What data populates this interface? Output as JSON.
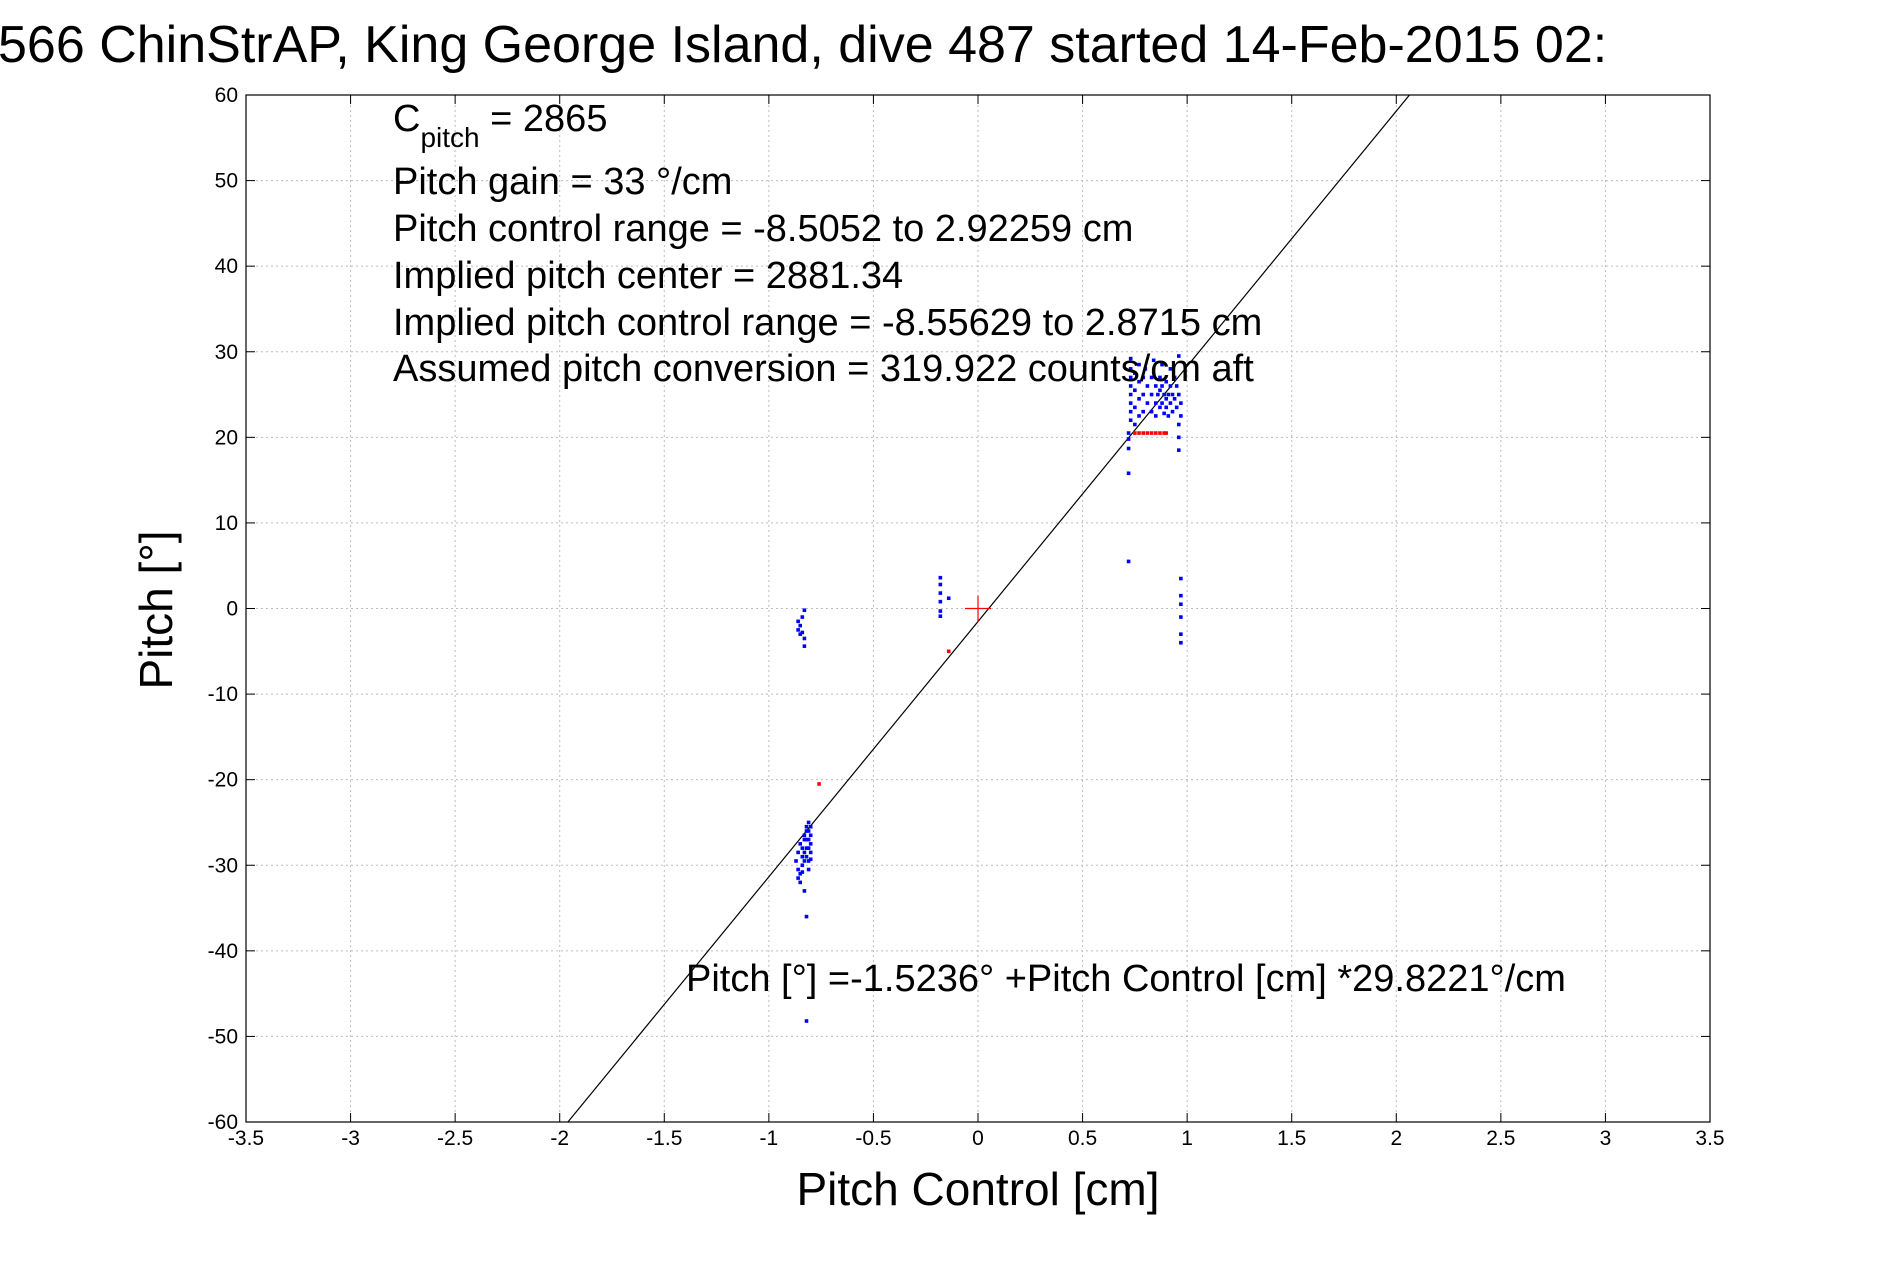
{
  "chart_data": {
    "type": "scatter",
    "title": "566 ChinStrAP, King George Island, dive 487 started 14-Feb-2015 02:",
    "xlabel": "Pitch Control [cm]",
    "ylabel": "Pitch [°]",
    "xlim": [
      -3.5,
      3.5
    ],
    "ylim": [
      -60,
      60
    ],
    "grid": true,
    "x_ticks": [
      -3.5,
      -3,
      -2.5,
      -2,
      -1.5,
      -1,
      -0.5,
      0,
      0.5,
      1,
      1.5,
      2,
      2.5,
      3,
      3.5
    ],
    "y_ticks": [
      -60,
      -50,
      -40,
      -30,
      -20,
      -10,
      0,
      10,
      20,
      30,
      40,
      50,
      60
    ],
    "x_tick_labels": [
      "-3.5",
      "-3",
      "-2.5",
      "-2",
      "-1.5",
      "-1",
      "-0.5",
      "0",
      "0.5",
      "1",
      "1.5",
      "2",
      "2.5",
      "3",
      "3.5"
    ],
    "y_tick_labels": [
      "-60",
      "-50",
      "-40",
      "-30",
      "-20",
      "-10",
      "0",
      "10",
      "20",
      "30",
      "40",
      "50",
      "60"
    ],
    "annotations": {
      "c_pitch_main": "C",
      "c_pitch_sub": "pitch",
      "c_pitch_value": " = 2865",
      "pitch_gain": "Pitch gain = 33 °/cm",
      "control_range": "Pitch control range = -8.5052 to 2.92259 cm",
      "implied_center": "Implied pitch center = 2881.34",
      "implied_range": "Implied pitch control range = -8.55629 to 2.8715 cm",
      "conversion": "Assumed pitch conversion = 319.922 counts/cm aft",
      "fit_equation": "Pitch [°] =-1.5236° +Pitch Control [cm] *29.8221°/cm"
    },
    "fit_line": {
      "intercept": -1.5236,
      "slope": 29.8221,
      "color": "#000000"
    },
    "center_marker": {
      "x": 0,
      "y": 0,
      "color": "#ff0000"
    },
    "series": [
      {
        "color": "#0000ff",
        "points": [
          [
            -0.86,
            -1.5
          ],
          [
            -0.85,
            -2.0
          ],
          [
            -0.86,
            -2.5
          ],
          [
            -0.84,
            -1.0
          ],
          [
            -0.83,
            -0.2
          ],
          [
            -0.83,
            -3.5
          ],
          [
            -0.83,
            -4.4
          ],
          [
            -0.85,
            -3.0
          ],
          [
            -0.84,
            -2.8
          ],
          [
            -0.87,
            -29.5
          ],
          [
            -0.86,
            -30.5
          ],
          [
            -0.86,
            -28.5
          ],
          [
            -0.85,
            -31.0
          ],
          [
            -0.85,
            -27.5
          ],
          [
            -0.84,
            -28.0
          ],
          [
            -0.84,
            -29.0
          ],
          [
            -0.84,
            -30.0
          ],
          [
            -0.83,
            -26.5
          ],
          [
            -0.83,
            -27.0
          ],
          [
            -0.83,
            -28.5
          ],
          [
            -0.83,
            -29.5
          ],
          [
            -0.82,
            -25.5
          ],
          [
            -0.82,
            -26.0
          ],
          [
            -0.82,
            -27.0
          ],
          [
            -0.82,
            -28.0
          ],
          [
            -0.82,
            -29.0
          ],
          [
            -0.81,
            -25.0
          ],
          [
            -0.81,
            -26.0
          ],
          [
            -0.81,
            -27.0
          ],
          [
            -0.81,
            -28.0
          ],
          [
            -0.81,
            -29.5
          ],
          [
            -0.8,
            -25.5
          ],
          [
            -0.8,
            -26.5
          ],
          [
            -0.8,
            -27.5
          ],
          [
            -0.8,
            -28.5
          ],
          [
            -0.86,
            -31.5
          ],
          [
            -0.85,
            -32.0
          ],
          [
            -0.83,
            -33.0
          ],
          [
            -0.82,
            -36.0
          ],
          [
            -0.82,
            -48.2
          ],
          [
            -0.84,
            -30.8
          ],
          [
            -0.81,
            -30.5
          ],
          [
            -0.8,
            -29.3
          ],
          [
            -0.18,
            3.6
          ],
          [
            -0.18,
            2.8
          ],
          [
            -0.18,
            1.8
          ],
          [
            -0.18,
            0.8
          ],
          [
            -0.18,
            -0.3
          ],
          [
            -0.18,
            -0.9
          ],
          [
            -0.14,
            1.2
          ],
          [
            0.72,
            5.5
          ],
          [
            0.72,
            15.8
          ],
          [
            0.72,
            18.7
          ],
          [
            0.72,
            19.8
          ],
          [
            0.72,
            20.5
          ],
          [
            0.73,
            22.0
          ],
          [
            0.73,
            23.0
          ],
          [
            0.73,
            24.0
          ],
          [
            0.73,
            25.0
          ],
          [
            0.73,
            26.0
          ],
          [
            0.73,
            27.0
          ],
          [
            0.73,
            28.0
          ],
          [
            0.73,
            29.2
          ],
          [
            0.75,
            21.5
          ],
          [
            0.75,
            23.5
          ],
          [
            0.75,
            25.5
          ],
          [
            0.75,
            27.5
          ],
          [
            0.77,
            22.5
          ],
          [
            0.77,
            24.5
          ],
          [
            0.77,
            26.5
          ],
          [
            0.77,
            28.5
          ],
          [
            0.79,
            23.0
          ],
          [
            0.79,
            25.0
          ],
          [
            0.79,
            27.0
          ],
          [
            0.81,
            24.0
          ],
          [
            0.81,
            26.0
          ],
          [
            0.83,
            25.0
          ],
          [
            0.83,
            23.0
          ],
          [
            0.83,
            27.0
          ],
          [
            0.85,
            24.0
          ],
          [
            0.85,
            22.5
          ],
          [
            0.85,
            26.0
          ],
          [
            0.86,
            25.0
          ],
          [
            0.87,
            23.5
          ],
          [
            0.87,
            25.5
          ],
          [
            0.87,
            27.0
          ],
          [
            0.88,
            24.0
          ],
          [
            0.88,
            26.0
          ],
          [
            0.89,
            22.8
          ],
          [
            0.89,
            25.0
          ],
          [
            0.9,
            23.5
          ],
          [
            0.9,
            24.5
          ],
          [
            0.9,
            26.5
          ],
          [
            0.91,
            25.0
          ],
          [
            0.91,
            22.5
          ],
          [
            0.92,
            24.0
          ],
          [
            0.92,
            26.0
          ],
          [
            0.93,
            23.0
          ],
          [
            0.93,
            25.0
          ],
          [
            0.94,
            24.5
          ],
          [
            0.94,
            27.0
          ],
          [
            0.95,
            23.5
          ],
          [
            0.95,
            26.0
          ],
          [
            0.96,
            25.0
          ],
          [
            0.96,
            21.5
          ],
          [
            0.96,
            20.0
          ],
          [
            0.96,
            18.5
          ],
          [
            0.96,
            29.5
          ],
          [
            0.97,
            24.0
          ],
          [
            0.97,
            22.5
          ],
          [
            0.97,
            3.5
          ],
          [
            0.97,
            1.5
          ],
          [
            0.97,
            0.5
          ],
          [
            0.97,
            -1.0
          ],
          [
            0.97,
            -3.0
          ],
          [
            0.97,
            -4.0
          ],
          [
            0.92,
            28.0
          ],
          [
            0.88,
            28.5
          ],
          [
            0.84,
            29.0
          ],
          [
            0.8,
            28.0
          ]
        ]
      },
      {
        "color": "#ff0000",
        "points": [
          [
            -0.76,
            -20.5
          ],
          [
            -0.14,
            -5.0
          ],
          [
            0.75,
            20.5
          ],
          [
            0.77,
            20.5
          ],
          [
            0.79,
            20.5
          ],
          [
            0.81,
            20.5
          ],
          [
            0.83,
            20.5
          ],
          [
            0.85,
            20.5
          ],
          [
            0.87,
            20.5
          ],
          [
            0.89,
            20.5
          ],
          [
            0.9,
            20.5
          ]
        ]
      }
    ]
  }
}
